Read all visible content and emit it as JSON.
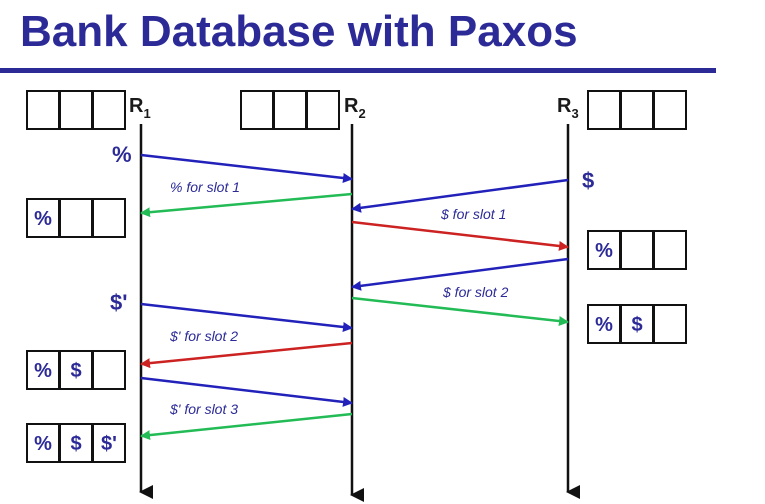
{
  "title": "Bank Database with Paxos",
  "replicas": [
    {
      "name": "R",
      "sub": "1"
    },
    {
      "name": "R",
      "sub": "2"
    },
    {
      "name": "R",
      "sub": "3"
    }
  ],
  "events": {
    "r1_first": "%",
    "r3_first": "$",
    "r1_second": "$'"
  },
  "messages": {
    "pct_slot1": "% for slot 1",
    "dollar_slot1": "$ for slot 1",
    "dollar_slot2": "$ for slot 2",
    "dprime_slot2": "$' for slot 2",
    "dprime_slot3": "$' for slot 3"
  },
  "state_rows": {
    "r1_row_a": [
      "%",
      "",
      ""
    ],
    "r1_row_b": [
      "%",
      "$",
      ""
    ],
    "r1_row_c": [
      "%",
      "$",
      "$'"
    ],
    "r3_row_a": [
      "%",
      "",
      ""
    ],
    "r3_row_b": [
      "%",
      "$",
      ""
    ]
  },
  "colors": {
    "title": "#2b2a97",
    "request": "#2222bb",
    "reply_green": "#22bb55",
    "forward_red": "#cc2222"
  }
}
